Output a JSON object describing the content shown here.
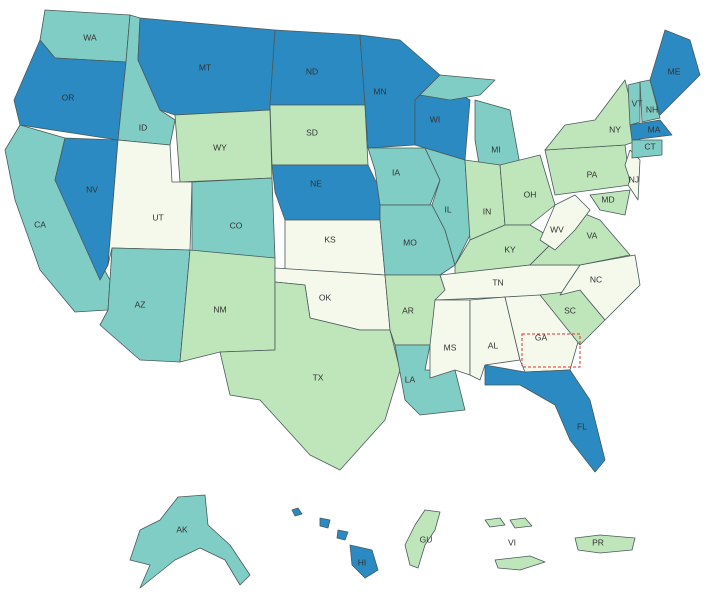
{
  "regions": [
    {
      "label": "WA",
      "color": "#7fcdc5"
    },
    {
      "label": "OR",
      "color": "#2a8ac1"
    },
    {
      "label": "CA",
      "color": "#7fcdc5"
    },
    {
      "label": "NV",
      "color": "#2a8ac1"
    },
    {
      "label": "ID",
      "color": "#7fcdc5"
    },
    {
      "label": "MT",
      "color": "#2a8ac1"
    },
    {
      "label": "WY",
      "color": "#bfe6bb"
    },
    {
      "label": "UT",
      "color": "#f4f9ec"
    },
    {
      "label": "CO",
      "color": "#7fcdc5"
    },
    {
      "label": "AZ",
      "color": "#7fcdc5"
    },
    {
      "label": "NM",
      "color": "#bfe6bb"
    },
    {
      "label": "ND",
      "color": "#2a8ac1"
    },
    {
      "label": "SD",
      "color": "#bfe6bb"
    },
    {
      "label": "NE",
      "color": "#2a8ac1"
    },
    {
      "label": "KS",
      "color": "#f4f9ec"
    },
    {
      "label": "OK",
      "color": "#f4f9ec"
    },
    {
      "label": "TX",
      "color": "#bfe6bb"
    },
    {
      "label": "MN",
      "color": "#2a8ac1"
    },
    {
      "label": "IA",
      "color": "#7fcdc5"
    },
    {
      "label": "MO",
      "color": "#7fcdc5"
    },
    {
      "label": "AR",
      "color": "#bfe6bb"
    },
    {
      "label": "LA",
      "color": "#7fcdc5"
    },
    {
      "label": "WI",
      "color": "#2a8ac1"
    },
    {
      "label": "IL",
      "color": "#7fcdc5"
    },
    {
      "label": "MI",
      "color": "#7fcdc5"
    },
    {
      "label": "IN",
      "color": "#bfe6bb"
    },
    {
      "label": "OH",
      "color": "#bfe6bb"
    },
    {
      "label": "KY",
      "color": "#bfe6bb"
    },
    {
      "label": "TN",
      "color": "#f4f9ec"
    },
    {
      "label": "MS",
      "color": "#f4f9ec"
    },
    {
      "label": "AL",
      "color": "#f4f9ec"
    },
    {
      "label": "GA",
      "color": "#f4f9ec"
    },
    {
      "label": "FL",
      "color": "#2a8ac1"
    },
    {
      "label": "SC",
      "color": "#bfe6bb"
    },
    {
      "label": "NC",
      "color": "#f4f9ec"
    },
    {
      "label": "VA",
      "color": "#bfe6bb"
    },
    {
      "label": "WV",
      "color": "#f4f9ec"
    },
    {
      "label": "PA",
      "color": "#bfe6bb"
    },
    {
      "label": "NY",
      "color": "#bfe6bb"
    },
    {
      "label": "MD",
      "color": "#bfe6bb"
    },
    {
      "label": "NJ",
      "color": "#f4f9ec"
    },
    {
      "label": "CT",
      "color": "#7fcdc5"
    },
    {
      "label": "MA",
      "color": "#2a8ac1"
    },
    {
      "label": "VT",
      "color": "#7fcdc5"
    },
    {
      "label": "NH",
      "color": "#7fcdc5"
    },
    {
      "label": "ME",
      "color": "#2a8ac1"
    },
    {
      "label": "AK",
      "color": "#7fcdc5"
    },
    {
      "label": "HI",
      "color": "#2a8ac1"
    },
    {
      "label": "GU",
      "color": "#bfe6bb"
    },
    {
      "label": "VI",
      "color": "#bfe6bb"
    },
    {
      "label": "PR",
      "color": "#bfe6bb"
    }
  ]
}
